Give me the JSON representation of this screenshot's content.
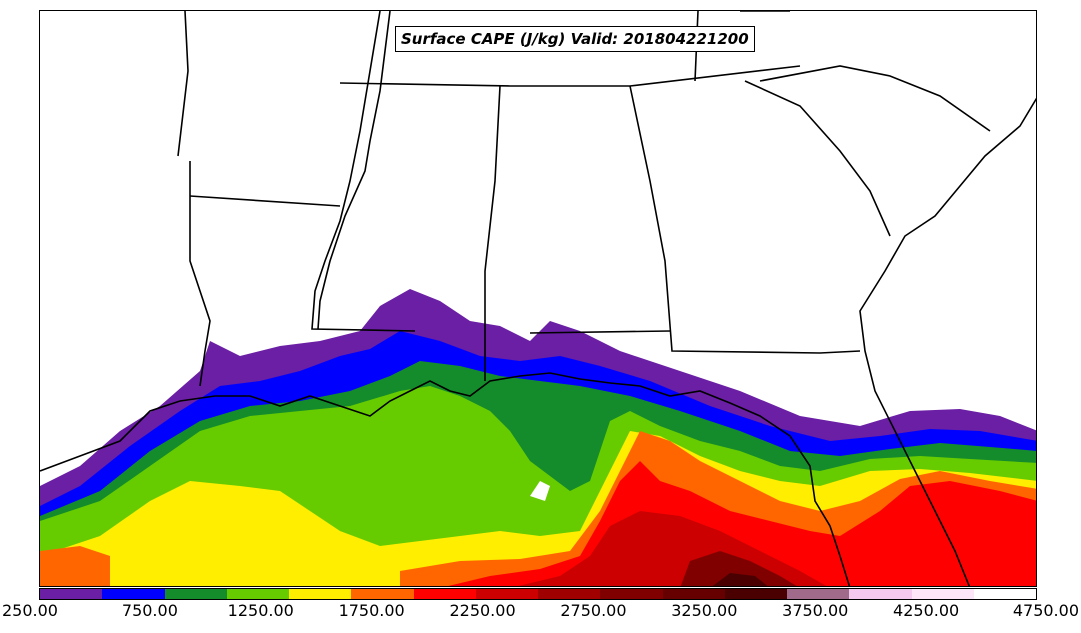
{
  "title": "Surface CAPE (J/kg) Valid: 201804221200",
  "colorbar": {
    "colors": [
      "#6a1fa4",
      "#0000ff",
      "#148c2c",
      "#66cc00",
      "#ffee00",
      "#ff6600",
      "#ff0000",
      "#cc0000",
      "#a00000",
      "#800000",
      "#660000",
      "#4a0000",
      "#a06b8a",
      "#f5c8f0",
      "#fce6f8",
      "#ffffff"
    ],
    "min": 250,
    "max": 4750,
    "tick_labels": [
      "250.00",
      "750.00",
      "1250.00",
      "1750.00",
      "2250.00",
      "2750.00",
      "3250.00",
      "3750.00",
      "4250.00",
      "4750.00"
    ]
  },
  "map": {
    "region": "Southeastern United States and Gulf of Mexico",
    "field": "Surface CAPE",
    "units": "J/kg",
    "valid": "201804221200",
    "highest_values_area": "central Gulf of Mexico south of Florida Panhandle",
    "background_color": "#ffffff",
    "boundary_color": "#000000"
  }
}
